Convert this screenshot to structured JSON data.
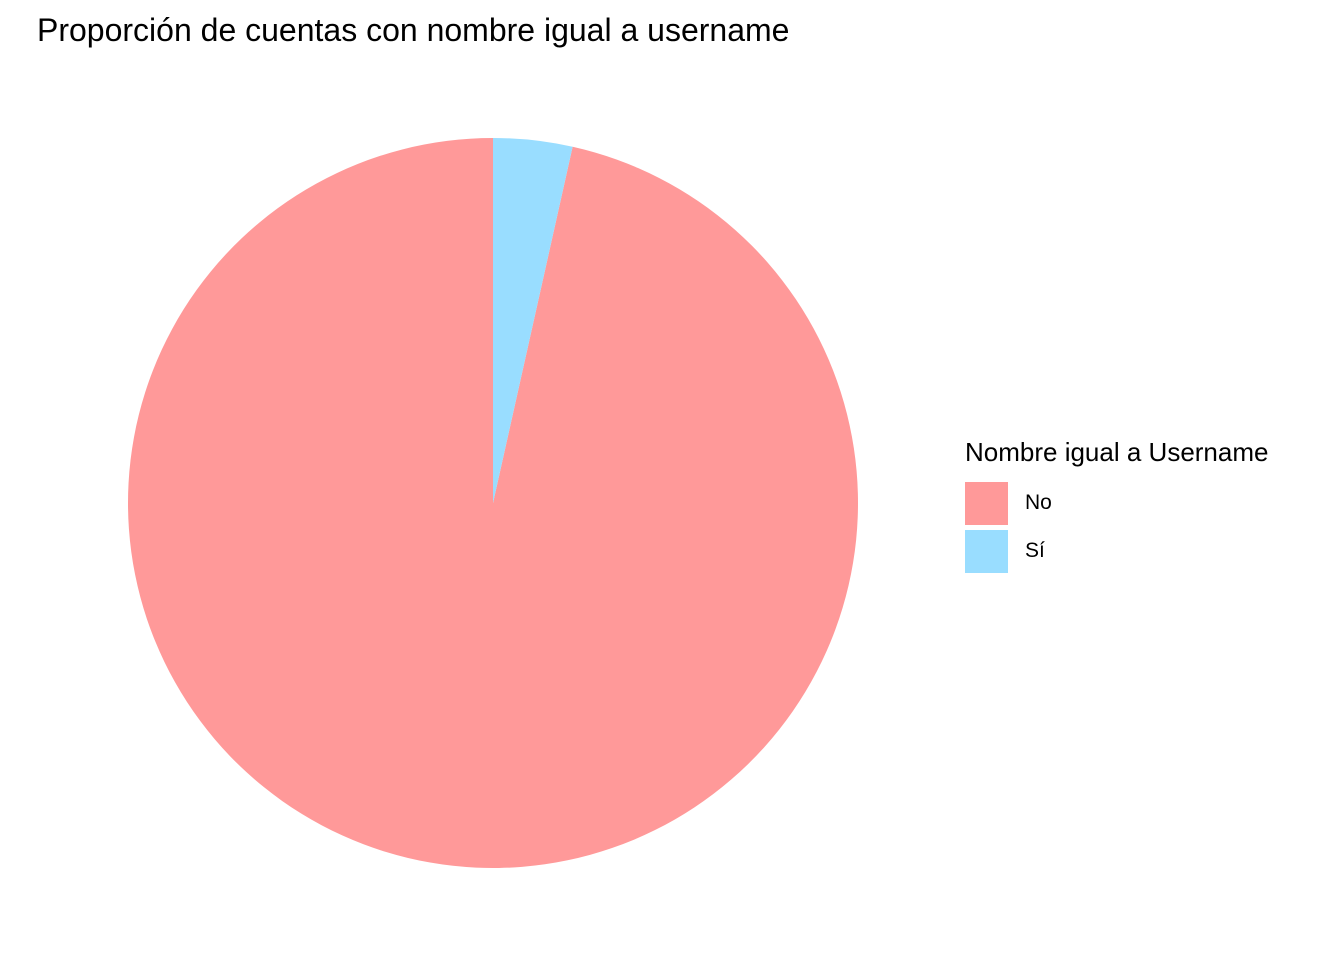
{
  "chart_data": {
    "type": "pie",
    "title": "Proporción de cuentas con nombre igual a username",
    "legend": {
      "title": "Nombre igual a Username",
      "position": "right"
    },
    "slices": [
      {
        "label": "No",
        "value": 96.5,
        "color": "#FF9999"
      },
      {
        "label": "Sí",
        "value": 3.5,
        "color": "#99DDFF"
      }
    ],
    "start": "top",
    "direction": "counterclockwise",
    "background": "#FFFFFF"
  }
}
